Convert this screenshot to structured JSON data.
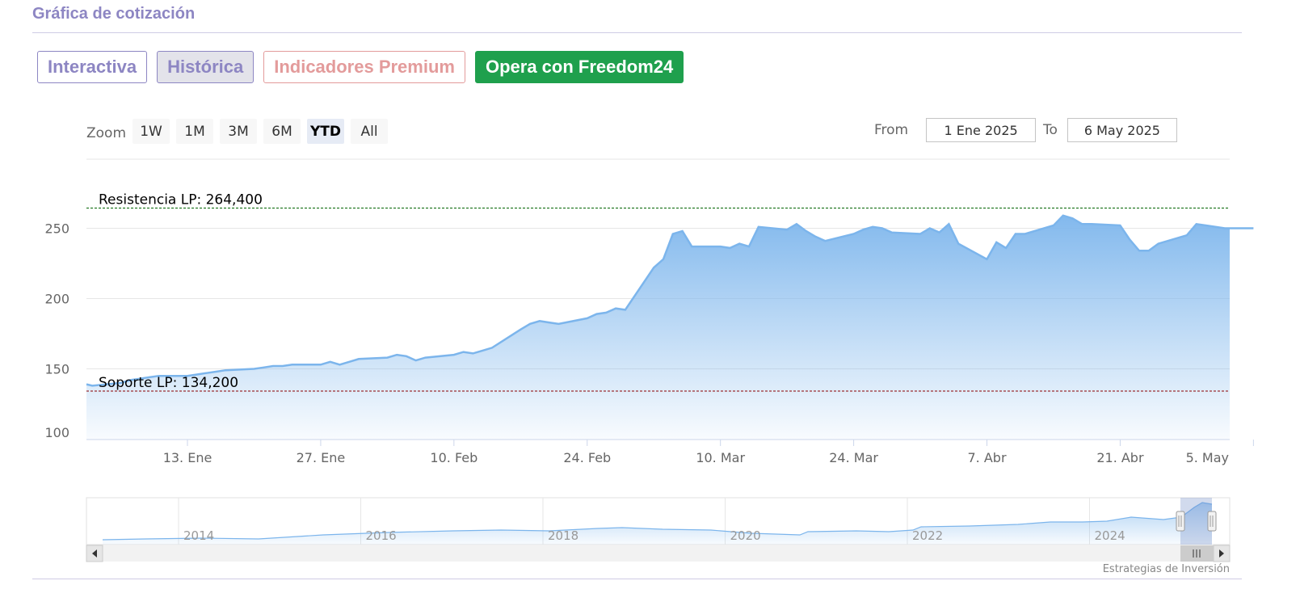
{
  "section": {
    "title": "Gráfica de cotización"
  },
  "tabs": [
    {
      "label": "Interactiva"
    },
    {
      "label": "Histórica"
    },
    {
      "label": "Indicadores Premium"
    },
    {
      "label": "Opera con Freedom24"
    }
  ],
  "zoom": {
    "label": "Zoom",
    "buttons": [
      "1W",
      "1M",
      "3M",
      "6M",
      "YTD",
      "All"
    ],
    "active": "YTD"
  },
  "range": {
    "from_label": "From",
    "from_value": "1 Ene 2025",
    "to_label": "To",
    "to_value": "6 May 2025"
  },
  "credit": "Estrategias de Inversión",
  "colors": {
    "line": "#7cb5ec",
    "resistance": "#006400",
    "support": "#8b0000",
    "tab_purple": "#8d86c3",
    "tab_red": "#e39b9b",
    "tab_green": "#1fa04d"
  },
  "chart_data": {
    "type": "area",
    "title": "",
    "xlabel": "",
    "ylabel": "",
    "ylim": [
      90,
      285
    ],
    "yticks": [
      100,
      150,
      200,
      250
    ],
    "xticks": [
      "13. Ene",
      "27. Ene",
      "10. Feb",
      "24. Feb",
      "10. Mar",
      "24. Mar",
      "7. Abr",
      "21. Abr",
      "5. May"
    ],
    "grid": true,
    "levels": [
      {
        "label": "Resistencia LP: 264,400",
        "value": 264.4
      },
      {
        "label": "Soporte LP: 134,200",
        "value": 134.2
      }
    ],
    "series": [
      {
        "x": [
          "2025-01-02",
          "2025-01-03",
          "2025-01-06",
          "2025-01-07",
          "2025-01-08",
          "2025-01-09",
          "2025-01-10",
          "2025-01-13",
          "2025-01-14",
          "2025-01-15",
          "2025-01-16",
          "2025-01-17",
          "2025-01-20",
          "2025-01-21",
          "2025-01-22",
          "2025-01-23",
          "2025-01-24",
          "2025-01-27",
          "2025-01-28",
          "2025-01-29",
          "2025-01-30",
          "2025-01-31",
          "2025-02-03",
          "2025-02-04",
          "2025-02-05",
          "2025-02-06",
          "2025-02-07",
          "2025-02-10",
          "2025-02-11",
          "2025-02-12",
          "2025-02-13",
          "2025-02-14",
          "2025-02-17",
          "2025-02-18",
          "2025-02-19",
          "2025-02-20",
          "2025-02-21",
          "2025-02-24",
          "2025-02-25",
          "2025-02-26",
          "2025-02-27",
          "2025-02-28",
          "2025-03-03",
          "2025-03-04",
          "2025-03-05",
          "2025-03-06",
          "2025-03-07",
          "2025-03-10",
          "2025-03-11",
          "2025-03-12",
          "2025-03-13",
          "2025-03-14",
          "2025-03-17",
          "2025-03-18",
          "2025-03-19",
          "2025-03-20",
          "2025-03-21",
          "2025-03-24",
          "2025-03-25",
          "2025-03-26",
          "2025-03-27",
          "2025-03-28",
          "2025-03-31",
          "2025-04-01",
          "2025-04-02",
          "2025-04-03",
          "2025-04-04",
          "2025-04-07",
          "2025-04-08",
          "2025-04-09",
          "2025-04-10",
          "2025-04-11",
          "2025-04-14",
          "2025-04-15",
          "2025-04-16",
          "2025-04-17",
          "2025-04-18",
          "2025-04-21",
          "2025-04-22",
          "2025-04-23",
          "2025-04-24",
          "2025-04-25",
          "2025-04-28",
          "2025-04-29",
          "2025-04-30",
          "2025-05-02",
          "2025-05-05",
          "2025-05-06"
        ],
        "y": [
          139,
          138,
          140,
          142,
          143,
          144,
          145,
          145,
          146,
          147,
          148,
          149,
          150,
          151,
          152,
          152,
          153,
          153,
          155,
          153,
          155,
          157,
          158,
          160,
          159,
          156,
          158,
          160,
          162,
          161,
          163,
          165,
          178,
          182,
          184,
          183,
          182,
          186,
          189,
          190,
          193,
          192,
          222,
          228,
          246,
          248,
          237,
          237,
          236,
          239,
          237,
          251,
          249,
          253,
          248,
          244,
          241,
          246,
          249,
          251,
          250,
          247,
          246,
          250,
          247,
          253,
          239,
          228,
          240,
          236,
          246,
          246,
          252,
          259,
          257,
          253,
          253,
          252,
          242,
          234,
          234,
          239,
          245,
          253,
          252,
          250,
          250,
          250
        ]
      }
    ]
  },
  "navigator": {
    "xticks": [
      "2014",
      "2016",
      "2018",
      "2020",
      "2022",
      "2024"
    ]
  }
}
